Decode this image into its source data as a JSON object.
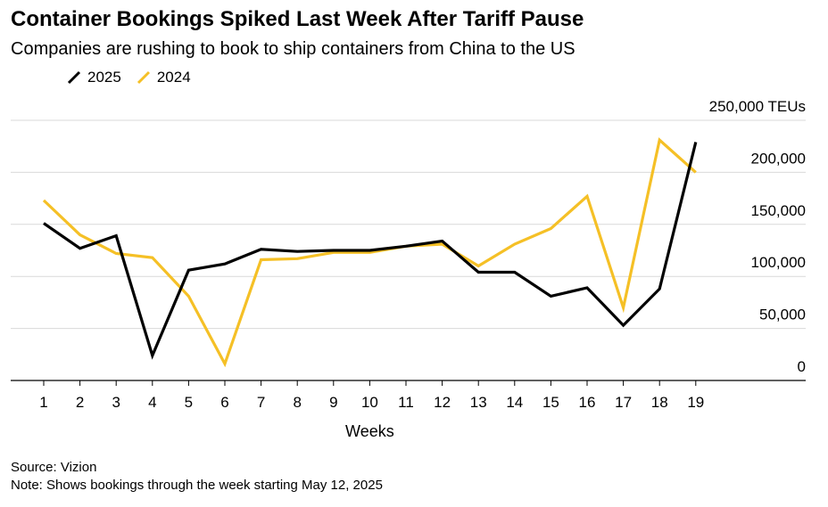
{
  "chart_data": {
    "type": "line",
    "title": "Container Bookings Spiked Last Week After Tariff Pause",
    "subtitle": "Companies are rushing to book to ship containers from China to the US",
    "xlabel": "Weeks",
    "ylabel": "TEUs",
    "ylim": [
      0,
      250000
    ],
    "y_ticks": [
      {
        "value": 0,
        "label": "0"
      },
      {
        "value": 50000,
        "label": "50,000"
      },
      {
        "value": 100000,
        "label": "100,000"
      },
      {
        "value": 150000,
        "label": "150,000"
      },
      {
        "value": 200000,
        "label": "200,000"
      },
      {
        "value": 250000,
        "label": "250,000 TEUs"
      }
    ],
    "x": [
      "1",
      "2",
      "3",
      "4",
      "5",
      "6",
      "7",
      "8",
      "9",
      "10",
      "11",
      "12",
      "13",
      "14",
      "15",
      "16",
      "17",
      "18",
      "19"
    ],
    "series": [
      {
        "name": "2025",
        "color": "#000000",
        "values": [
          151000,
          127000,
          139000,
          24000,
          106000,
          112000,
          126000,
          124000,
          125000,
          125000,
          129000,
          134000,
          104000,
          104000,
          81000,
          89000,
          53000,
          88000,
          229000
        ]
      },
      {
        "name": "2024",
        "color": "#f5c026",
        "values": [
          173000,
          140000,
          122000,
          118000,
          81000,
          16000,
          116000,
          117000,
          123000,
          123000,
          129000,
          131000,
          110000,
          131000,
          146000,
          177000,
          70000,
          231000,
          200000
        ]
      }
    ],
    "grid": true,
    "legend_position": "top-left"
  },
  "footer": {
    "source": "Source: Vizion",
    "note": "Note: Shows bookings through the week starting May 12, 2025"
  }
}
